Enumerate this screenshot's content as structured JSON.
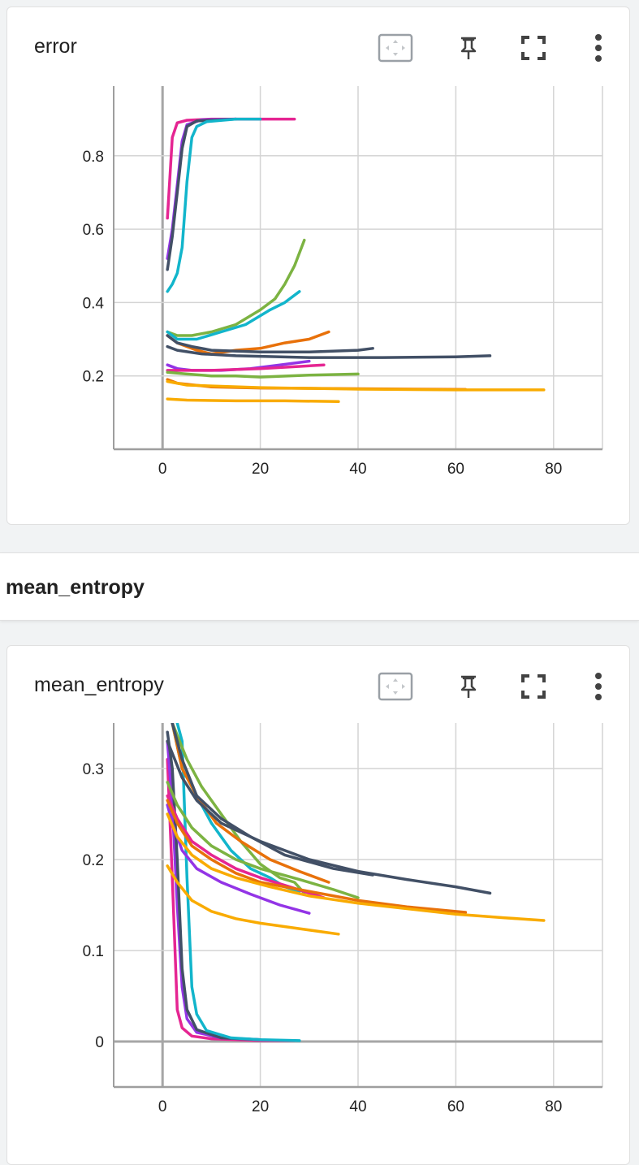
{
  "cards": [
    {
      "title": "error"
    },
    {
      "title": "mean_entropy"
    }
  ],
  "section": {
    "title": "mean_entropy"
  },
  "icons": [
    "fit-domain-icon",
    "pin-icon",
    "fullscreen-icon",
    "more-vert-icon"
  ],
  "chart_data": [
    {
      "type": "line",
      "title": "error",
      "xlabel": "",
      "ylabel": "",
      "xlim": [
        -10,
        90
      ],
      "ylim": [
        0,
        0.99
      ],
      "x_ticks": [
        0,
        20,
        40,
        60,
        80
      ],
      "y_ticks": [
        0.2,
        0.4,
        0.6,
        0.8
      ],
      "x_tick_labels": [
        "0",
        "20",
        "40",
        "60",
        "80"
      ],
      "y_tick_labels": [
        "0.2",
        "0.4",
        "0.6",
        "0.8"
      ],
      "grid": true,
      "series": [
        {
          "color": "#e52592",
          "points": [
            [
              1,
              0.63
            ],
            [
              2,
              0.85
            ],
            [
              3,
              0.89
            ],
            [
              5,
              0.897
            ],
            [
              10,
              0.9
            ],
            [
              27,
              0.9
            ]
          ]
        },
        {
          "color": "#9334e6",
          "points": [
            [
              1,
              0.52
            ],
            [
              2,
              0.6
            ],
            [
              3,
              0.72
            ],
            [
              4,
              0.84
            ],
            [
              5,
              0.885
            ],
            [
              8,
              0.898
            ],
            [
              15,
              0.9
            ]
          ]
        },
        {
          "color": "#425066",
          "points": [
            [
              1,
              0.49
            ],
            [
              2,
              0.58
            ],
            [
              3,
              0.7
            ],
            [
              4,
              0.82
            ],
            [
              5,
              0.88
            ],
            [
              7,
              0.895
            ],
            [
              15,
              0.9
            ]
          ]
        },
        {
          "color": "#12b5cb",
          "points": [
            [
              1,
              0.43
            ],
            [
              2,
              0.45
            ],
            [
              3,
              0.48
            ],
            [
              4,
              0.55
            ],
            [
              5,
              0.73
            ],
            [
              6,
              0.85
            ],
            [
              7,
              0.88
            ],
            [
              9,
              0.893
            ],
            [
              15,
              0.9
            ],
            [
              20,
              0.9
            ]
          ]
        },
        {
          "color": "#7cb342",
          "points": [
            [
              1,
              0.32
            ],
            [
              3,
              0.31
            ],
            [
              6,
              0.31
            ],
            [
              10,
              0.32
            ],
            [
              15,
              0.34
            ],
            [
              20,
              0.38
            ],
            [
              23,
              0.41
            ],
            [
              25,
              0.45
            ],
            [
              27,
              0.5
            ],
            [
              29,
              0.57
            ]
          ]
        },
        {
          "color": "#12b5cb",
          "points": [
            [
              1,
              0.32
            ],
            [
              3,
              0.3
            ],
            [
              7,
              0.3
            ],
            [
              12,
              0.32
            ],
            [
              17,
              0.34
            ],
            [
              22,
              0.38
            ],
            [
              25,
              0.4
            ],
            [
              28,
              0.43
            ]
          ]
        },
        {
          "color": "#e8710a",
          "points": [
            [
              1,
              0.31
            ],
            [
              3,
              0.29
            ],
            [
              7,
              0.27
            ],
            [
              10,
              0.26
            ],
            [
              15,
              0.27
            ],
            [
              20,
              0.275
            ],
            [
              25,
              0.29
            ],
            [
              30,
              0.3
            ],
            [
              34,
              0.32
            ]
          ]
        },
        {
          "color": "#425066",
          "points": [
            [
              1,
              0.31
            ],
            [
              3,
              0.29
            ],
            [
              6,
              0.28
            ],
            [
              10,
              0.27
            ],
            [
              20,
              0.265
            ],
            [
              30,
              0.265
            ],
            [
              40,
              0.27
            ],
            [
              43,
              0.275
            ]
          ]
        },
        {
          "color": "#425066",
          "points": [
            [
              1,
              0.28
            ],
            [
              3,
              0.27
            ],
            [
              8,
              0.26
            ],
            [
              15,
              0.255
            ],
            [
              30,
              0.25
            ],
            [
              45,
              0.25
            ],
            [
              60,
              0.252
            ],
            [
              67,
              0.255
            ]
          ]
        },
        {
          "color": "#9334e6",
          "points": [
            [
              1,
              0.23
            ],
            [
              3,
              0.22
            ],
            [
              6,
              0.215
            ],
            [
              12,
              0.215
            ],
            [
              18,
              0.22
            ],
            [
              24,
              0.23
            ],
            [
              30,
              0.24
            ]
          ]
        },
        {
          "color": "#e52592",
          "points": [
            [
              1,
              0.215
            ],
            [
              5,
              0.215
            ],
            [
              10,
              0.215
            ],
            [
              20,
              0.22
            ],
            [
              27,
              0.225
            ],
            [
              33,
              0.23
            ]
          ]
        },
        {
          "color": "#7cb342",
          "points": [
            [
              1,
              0.21
            ],
            [
              5,
              0.205
            ],
            [
              10,
              0.2
            ],
            [
              15,
              0.2
            ],
            [
              20,
              0.197
            ],
            [
              30,
              0.202
            ],
            [
              40,
              0.205
            ]
          ]
        },
        {
          "color": "#e8710a",
          "points": [
            [
              1,
              0.19
            ],
            [
              3,
              0.18
            ],
            [
              10,
              0.17
            ],
            [
              20,
              0.167
            ],
            [
              40,
              0.165
            ],
            [
              62,
              0.163
            ]
          ]
        },
        {
          "color": "#f9ab00",
          "points": [
            [
              1,
              0.185
            ],
            [
              5,
              0.175
            ],
            [
              20,
              0.168
            ],
            [
              40,
              0.164
            ],
            [
              60,
              0.162
            ],
            [
              78,
              0.162
            ]
          ]
        },
        {
          "color": "#f9ab00",
          "points": [
            [
              1,
              0.137
            ],
            [
              5,
              0.134
            ],
            [
              15,
              0.132
            ],
            [
              25,
              0.132
            ],
            [
              36,
              0.13
            ]
          ]
        }
      ]
    },
    {
      "type": "line",
      "title": "mean_entropy",
      "xlabel": "",
      "ylabel": "",
      "xlim": [
        -10,
        90
      ],
      "ylim": [
        -0.05,
        0.35
      ],
      "x_ticks": [
        0,
        20,
        40,
        60,
        80
      ],
      "y_ticks": [
        0,
        0.1,
        0.2,
        0.3
      ],
      "x_tick_labels": [
        "0",
        "20",
        "40",
        "60",
        "80"
      ],
      "y_tick_labels": [
        "0",
        "0.1",
        "0.2",
        "0.3"
      ],
      "grid": true,
      "series": [
        {
          "color": "#e52592",
          "points": [
            [
              1,
              0.31
            ],
            [
              2,
              0.18
            ],
            [
              3,
              0.035
            ],
            [
              4,
              0.015
            ],
            [
              6,
              0.006
            ],
            [
              10,
              0.003
            ],
            [
              20,
              0.001
            ],
            [
              27,
              0.001
            ]
          ]
        },
        {
          "color": "#9334e6",
          "points": [
            [
              1,
              0.33
            ],
            [
              2,
              0.26
            ],
            [
              3,
              0.15
            ],
            [
              4,
              0.06
            ],
            [
              5,
              0.025
            ],
            [
              7,
              0.01
            ],
            [
              12,
              0.004
            ],
            [
              20,
              0.002
            ]
          ]
        },
        {
          "color": "#425066",
          "points": [
            [
              1,
              0.34
            ],
            [
              2,
              0.3
            ],
            [
              3,
              0.2
            ],
            [
              4,
              0.08
            ],
            [
              5,
              0.035
            ],
            [
              7,
              0.013
            ],
            [
              12,
              0.004
            ],
            [
              20,
              0.002
            ]
          ]
        },
        {
          "color": "#12b5cb",
          "points": [
            [
              3,
              0.35
            ],
            [
              4,
              0.33
            ],
            [
              5,
              0.18
            ],
            [
              6,
              0.06
            ],
            [
              7,
              0.03
            ],
            [
              9,
              0.012
            ],
            [
              14,
              0.004
            ],
            [
              20,
              0.002
            ],
            [
              28,
              0.001
            ]
          ]
        },
        {
          "color": "#7cb342",
          "points": [
            [
              2,
              0.35
            ],
            [
              5,
              0.31
            ],
            [
              8,
              0.28
            ],
            [
              12,
              0.25
            ],
            [
              16,
              0.22
            ],
            [
              20,
              0.195
            ],
            [
              24,
              0.18
            ],
            [
              27,
              0.175
            ],
            [
              29,
              0.163
            ]
          ]
        },
        {
          "color": "#12b5cb",
          "points": [
            [
              2,
              0.35
            ],
            [
              4,
              0.3
            ],
            [
              7,
              0.27
            ],
            [
              10,
              0.24
            ],
            [
              14,
              0.21
            ],
            [
              18,
              0.19
            ],
            [
              22,
              0.18
            ],
            [
              25,
              0.17
            ],
            [
              28,
              0.165
            ]
          ]
        },
        {
          "color": "#e8710a",
          "points": [
            [
              2,
              0.35
            ],
            [
              4,
              0.3
            ],
            [
              7,
              0.27
            ],
            [
              11,
              0.24
            ],
            [
              16,
              0.22
            ],
            [
              22,
              0.2
            ],
            [
              28,
              0.187
            ],
            [
              34,
              0.175
            ]
          ]
        },
        {
          "color": "#425066",
          "points": [
            [
              2,
              0.35
            ],
            [
              4,
              0.31
            ],
            [
              7,
              0.27
            ],
            [
              12,
              0.245
            ],
            [
              18,
              0.225
            ],
            [
              25,
              0.205
            ],
            [
              35,
              0.19
            ],
            [
              43,
              0.183
            ]
          ]
        },
        {
          "color": "#425066",
          "points": [
            [
              1,
              0.33
            ],
            [
              4,
              0.29
            ],
            [
              7,
              0.265
            ],
            [
              12,
              0.24
            ],
            [
              20,
              0.22
            ],
            [
              30,
              0.2
            ],
            [
              40,
              0.187
            ],
            [
              50,
              0.178
            ],
            [
              60,
              0.17
            ],
            [
              67,
              0.163
            ]
          ]
        },
        {
          "color": "#7cb342",
          "points": [
            [
              1,
              0.285
            ],
            [
              3,
              0.26
            ],
            [
              6,
              0.235
            ],
            [
              10,
              0.215
            ],
            [
              15,
              0.2
            ],
            [
              20,
              0.19
            ],
            [
              28,
              0.178
            ],
            [
              35,
              0.167
            ],
            [
              40,
              0.158
            ]
          ]
        },
        {
          "color": "#e52592",
          "points": [
            [
              1,
              0.27
            ],
            [
              3,
              0.245
            ],
            [
              6,
              0.22
            ],
            [
              10,
              0.205
            ],
            [
              15,
              0.19
            ],
            [
              20,
              0.18
            ],
            [
              26,
              0.17
            ],
            [
              33,
              0.158
            ]
          ]
        },
        {
          "color": "#9334e6",
          "points": [
            [
              1,
              0.26
            ],
            [
              2,
              0.24
            ],
            [
              4,
              0.21
            ],
            [
              7,
              0.19
            ],
            [
              12,
              0.175
            ],
            [
              18,
              0.162
            ],
            [
              24,
              0.15
            ],
            [
              30,
              0.141
            ]
          ]
        },
        {
          "color": "#e8710a",
          "points": [
            [
              1,
              0.265
            ],
            [
              3,
              0.24
            ],
            [
              6,
              0.215
            ],
            [
              10,
              0.2
            ],
            [
              15,
              0.185
            ],
            [
              20,
              0.175
            ],
            [
              30,
              0.165
            ],
            [
              40,
              0.155
            ],
            [
              50,
              0.148
            ],
            [
              62,
              0.142
            ]
          ]
        },
        {
          "color": "#f9ab00",
          "points": [
            [
              1,
              0.25
            ],
            [
              3,
              0.225
            ],
            [
              6,
              0.205
            ],
            [
              10,
              0.19
            ],
            [
              15,
              0.18
            ],
            [
              22,
              0.17
            ],
            [
              30,
              0.16
            ],
            [
              40,
              0.152
            ],
            [
              50,
              0.146
            ],
            [
              60,
              0.14
            ],
            [
              70,
              0.136
            ],
            [
              78,
              0.133
            ]
          ]
        },
        {
          "color": "#f9ab00",
          "points": [
            [
              1,
              0.193
            ],
            [
              3,
              0.175
            ],
            [
              6,
              0.155
            ],
            [
              10,
              0.143
            ],
            [
              15,
              0.135
            ],
            [
              20,
              0.13
            ],
            [
              28,
              0.124
            ],
            [
              36,
              0.118
            ]
          ]
        }
      ]
    }
  ]
}
